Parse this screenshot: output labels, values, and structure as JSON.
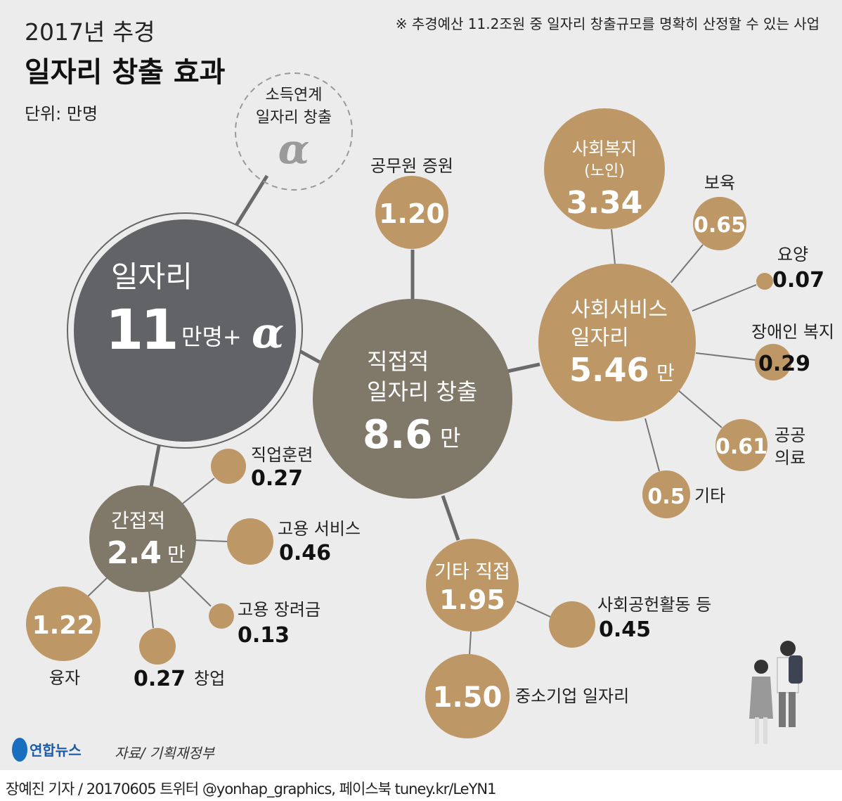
{
  "header": {
    "subtitle": "2017년 추경",
    "title": "일자리 창출 효과",
    "unit": "단위: 만명",
    "note": "※ 추경예산 11.2조원 중 일자리 창출규모를 명확히 산정할 수 있는 사업"
  },
  "colors": {
    "background": "#ececec",
    "total": "#626366",
    "direct": "#807868",
    "item": "#bd9766"
  },
  "total": {
    "label": "일자리",
    "value": "11",
    "unit": "만명+",
    "alpha": "α"
  },
  "income_linked": {
    "line1": "소득연계",
    "line2": "일자리 창출",
    "alpha": "α"
  },
  "direct": {
    "line1": "직접적",
    "line2": "일자리 창출",
    "value": "8.6",
    "unit": "만"
  },
  "civil_servants": {
    "label": "공무원 증원",
    "value": "1.20"
  },
  "social_service": {
    "line1": "사회서비스",
    "line2": "일자리",
    "value": "5.46",
    "unit": "만",
    "items": [
      {
        "label": "사회복지",
        "sub": "(노인)",
        "value": "3.34"
      },
      {
        "label": "보육",
        "value": "0.65"
      },
      {
        "label": "요양",
        "value": "0.07"
      },
      {
        "label": "장애인 복지",
        "value": "0.29"
      },
      {
        "label": "공공",
        "label2": "의료",
        "value": "0.61"
      },
      {
        "label": "기타",
        "value": "0.5"
      }
    ]
  },
  "other_direct": {
    "line1": "기타 직접",
    "value": "1.95",
    "items": [
      {
        "label": "사회공헌활동 등",
        "value": "0.45"
      },
      {
        "label": "중소기업 일자리",
        "value": "1.50"
      }
    ]
  },
  "indirect": {
    "line1": "간접적",
    "value": "2.4",
    "unit": "만",
    "items": [
      {
        "label": "직업훈련",
        "value": "0.27"
      },
      {
        "label": "고용 서비스",
        "value": "0.46"
      },
      {
        "label": "고용 장려금",
        "value": "0.13"
      },
      {
        "label": "융자",
        "value": "1.22"
      },
      {
        "label": "창업",
        "value": "0.27"
      }
    ]
  },
  "logo": "연합뉴스",
  "source": "자료/ 기획재정부",
  "credit": "장예진 기자 / 20170605 트위터 @yonhap_graphics, 페이스북 tuney.kr/LeYN1"
}
